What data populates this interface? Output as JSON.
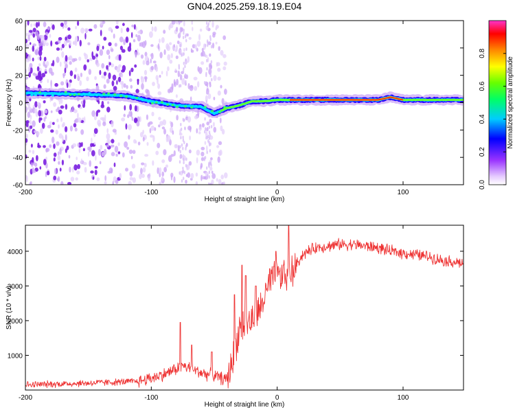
{
  "title": "GN04.2025.259.18.19.E04",
  "colors": {
    "line": "#ee3333",
    "frame": "#000000",
    "colormap": [
      "#ffffff",
      "#d9b3ff",
      "#8a2be2",
      "#0000ff",
      "#00ffff",
      "#00ff00",
      "#ffff00",
      "#ff8000",
      "#ff0000",
      "#ff00ff"
    ]
  },
  "chart_data": [
    {
      "type": "heatmap",
      "name": "spectrogram",
      "xlabel": "Height of straight line (km)",
      "ylabel": "Frequency (Hz)",
      "xlim": [
        -200,
        148
      ],
      "ylim": [
        -60,
        60
      ],
      "xticks": [
        -200,
        -100,
        0,
        100
      ],
      "xtick_labels": [
        "-200",
        "-100",
        "0",
        "100"
      ],
      "yticks": [
        -60,
        -40,
        -20,
        0,
        20,
        40,
        60
      ],
      "ytick_labels": [
        "-60",
        "-40",
        "-20",
        "0",
        "20",
        "40",
        "60"
      ],
      "ridge": {
        "x": [
          -200,
          -150,
          -120,
          -100,
          -80,
          -60,
          -50,
          -40,
          -30,
          -20,
          -10,
          0,
          10,
          50,
          80,
          90,
          100,
          148
        ],
        "freq": [
          7,
          6,
          5,
          1,
          -2,
          -3,
          -8,
          -4,
          -2,
          1,
          1,
          2,
          2,
          2,
          2,
          4,
          2,
          2
        ]
      },
      "colorbar": {
        "label": "Normalized spectral amplitude",
        "range": [
          0,
          1
        ],
        "ticks": [
          0.0,
          0.2,
          0.4,
          0.6,
          0.8
        ],
        "tick_labels": [
          "0.0",
          "0.2",
          "0.4",
          "0.6",
          "0.8"
        ]
      }
    },
    {
      "type": "line",
      "name": "snr",
      "xlabel": "Height of straight line (km)",
      "ylabel": "SNR (10 * v/v)",
      "xlim": [
        -200,
        148
      ],
      "ylim": [
        0,
        4750
      ],
      "xticks": [
        -200,
        -100,
        0,
        100
      ],
      "xtick_labels": [
        "-200",
        "-100",
        "0",
        "100"
      ],
      "yticks": [
        1000,
        2000,
        3000,
        4000
      ],
      "ytick_labels": [
        "1000",
        "2000",
        "3000",
        "4000"
      ],
      "trend": {
        "x": [
          -200,
          -150,
          -110,
          -90,
          -75,
          -60,
          -50,
          -40,
          -35,
          -30,
          -25,
          -20,
          -15,
          -10,
          -5,
          0,
          5,
          10,
          20,
          30,
          40,
          50,
          60,
          80,
          90,
          100,
          110,
          120,
          130,
          148
        ],
        "y": [
          150,
          200,
          250,
          450,
          700,
          500,
          400,
          300,
          900,
          1800,
          1900,
          2000,
          2200,
          2700,
          3100,
          3300,
          3200,
          3300,
          3900,
          4100,
          4150,
          4200,
          4200,
          4100,
          4000,
          3950,
          3900,
          3850,
          3750,
          3650
        ]
      },
      "spikes": {
        "x": [
          -77,
          -68,
          -52,
          -34,
          -28,
          -25,
          -17,
          -6,
          -1,
          5,
          9
        ],
        "y": [
          1950,
          1300,
          1100,
          2750,
          3600,
          3300,
          3000,
          3500,
          4000,
          3600,
          4750
        ]
      }
    }
  ]
}
